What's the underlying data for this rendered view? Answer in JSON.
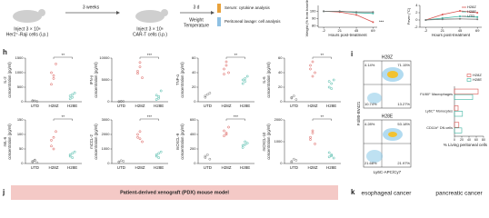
{
  "schematic": {
    "step1": "Inject 3 × 10⁶",
    "step1_cells": "Her2⁺-Raji cells (i.p.)",
    "interval1": "3 weeks",
    "step2": "Inject 3 × 10⁶",
    "step2_cells": "CAR-T cells (i.p.)",
    "interval2": "3 d",
    "measure1": "Weight",
    "measure2": "Temperature",
    "serum": "Serum: cytokine analysis",
    "lavage": "Peritoneal lavage: cell analysis"
  },
  "panels": {
    "h": "h",
    "i": "i",
    "j": "j",
    "k": "k"
  },
  "flow": {
    "y_label": "F4/80-BV421",
    "x_label": "Ly6C-APC/Cy7",
    "plots": [
      {
        "title": "H28Z",
        "quadrants": [
          "4.14%",
          "71.15%",
          "10.74%",
          "13.27%"
        ]
      },
      {
        "title": "H28E",
        "quadrants": [
          "4.28%",
          "53.18%",
          "21.68%",
          "21.97%"
        ]
      }
    ]
  },
  "pdx": {
    "title": "Patient-derived xenograft (PDX) mouse model"
  },
  "cancers": [
    "esophageal cancer",
    "pancreatic cancer"
  ],
  "chart_data": [
    {
      "type": "line",
      "y_label": "Weight (% from baseline)",
      "x_label": "Hours post-treatment",
      "x": [
        -2,
        21,
        45,
        69
      ],
      "xlim": [
        -10,
        75
      ],
      "xticks": [
        -2,
        21,
        45,
        69
      ],
      "ylim": [
        78,
        108
      ],
      "yticks": [
        80,
        90,
        100
      ],
      "annotation": "***",
      "series": [
        {
          "name": "H28Z",
          "color": "#d9534f",
          "values": [
            100,
            99,
            95,
            85
          ]
        },
        {
          "name": "H28E",
          "color": "#3bb3a0",
          "values": [
            100,
            100,
            98,
            97
          ]
        },
        {
          "name": "UTD",
          "color": "#777777",
          "values": [
            100,
            100,
            99,
            99
          ]
        }
      ]
    },
    {
      "type": "line",
      "y_label": "Fever (°C)",
      "x_label": "Hours post-treatment",
      "x": [
        -2,
        21,
        45,
        69
      ],
      "xlim": [
        -10,
        75
      ],
      "xticks": [
        -2,
        21,
        45,
        69
      ],
      "ylim": [
        -2,
        4
      ],
      "yticks": [
        -2,
        0,
        2,
        4
      ],
      "legend": "upper right",
      "series": [
        {
          "name": "H28Z",
          "color": "#d9534f",
          "values": [
            0,
            1.5,
            2.5,
            2
          ]
        },
        {
          "name": "H28E",
          "color": "#3bb3a0",
          "values": [
            0,
            0.5,
            1,
            0.8
          ]
        },
        {
          "name": "UTD",
          "color": "#777777",
          "values": [
            0,
            0.2,
            0.3,
            0.2
          ]
        }
      ]
    },
    {
      "type": "dot",
      "y_label": [
        "IL-2",
        "concentration (pg/ml)"
      ],
      "ylim": [
        0,
        1500
      ],
      "yticks": [
        0,
        500,
        1000,
        1500
      ],
      "annotation": "**",
      "series": [
        {
          "name": "UTD",
          "color": "#777777",
          "values": [
            20,
            30,
            10,
            40,
            25
          ]
        },
        {
          "name": "H28Z",
          "color": "#d9534f",
          "values": [
            1000,
            800,
            1300,
            600,
            900
          ]
        },
        {
          "name": "H28E",
          "color": "#3bb3a0",
          "values": [
            200,
            150,
            300,
            100,
            250
          ]
        }
      ]
    },
    {
      "type": "dot",
      "y_label": [
        "IFN-γ",
        "concentration (pg/ml)"
      ],
      "ylim": [
        0,
        10000
      ],
      "yticks": [
        0,
        5000,
        10000
      ],
      "annotation": "***",
      "series": [
        {
          "name": "UTD",
          "color": "#777777",
          "values": [
            50,
            100,
            80,
            20,
            60
          ]
        },
        {
          "name": "H28Z",
          "color": "#d9534f",
          "values": [
            6500,
            8000,
            5500,
            7000,
            9000
          ]
        },
        {
          "name": "H28E",
          "color": "#3bb3a0",
          "values": [
            1500,
            800,
            2500,
            500,
            1200
          ]
        }
      ]
    },
    {
      "type": "dot",
      "y_label": [
        "TNF-α",
        "concentration (pg/ml)"
      ],
      "ylim": [
        0,
        60
      ],
      "yticks": [
        0,
        20,
        40,
        60
      ],
      "annotation": "**",
      "series": [
        {
          "name": "UTD",
          "color": "#777777",
          "values": [
            8,
            10,
            12,
            6
          ]
        },
        {
          "name": "H28Z",
          "color": "#d9534f",
          "values": [
            45,
            50,
            40,
            38,
            55
          ]
        },
        {
          "name": "H28E",
          "color": "#3bb3a0",
          "values": [
            30,
            28,
            35,
            25,
            32
          ]
        }
      ]
    },
    {
      "type": "dot",
      "y_label": [
        "IL-6",
        "concentration (pg/ml)"
      ],
      "ylim": [
        0,
        60
      ],
      "yticks": [
        0,
        20,
        40,
        60
      ],
      "annotation": "**",
      "series": [
        {
          "name": "UTD",
          "color": "#777777",
          "values": [
            5,
            8,
            3,
            6
          ]
        },
        {
          "name": "H28Z",
          "color": "#d9534f",
          "values": [
            45,
            55,
            40,
            50,
            35
          ]
        },
        {
          "name": "H28E",
          "color": "#3bb3a0",
          "values": [
            20,
            25,
            30,
            28,
            18
          ]
        }
      ]
    },
    {
      "type": "dot",
      "y_label": [
        "mIL-6",
        "concentration (pg/ml)"
      ],
      "ylim": [
        0,
        150
      ],
      "yticks": [
        0,
        50,
        100,
        150
      ],
      "annotation": "**",
      "series": [
        {
          "name": "UTD",
          "color": "#777777",
          "values": [
            5,
            10,
            3,
            8,
            12
          ]
        },
        {
          "name": "H28Z",
          "color": "#d9534f",
          "values": [
            60,
            90,
            110,
            80,
            50
          ]
        },
        {
          "name": "H28E",
          "color": "#3bb3a0",
          "values": [
            30,
            20,
            40,
            25,
            35
          ]
        }
      ]
    },
    {
      "type": "dot",
      "y_label": [
        "mCCL-2",
        "concentration (pg/ml)"
      ],
      "ylim": [
        0,
        3000
      ],
      "yticks": [
        0,
        1000,
        2000,
        3000
      ],
      "annotation": "***",
      "series": [
        {
          "name": "UTD",
          "color": "#777777",
          "values": [
            100,
            200,
            150,
            120
          ]
        },
        {
          "name": "H28Z",
          "color": "#d9534f",
          "values": [
            1800,
            2200,
            1500,
            2000,
            1700
          ]
        },
        {
          "name": "H28E",
          "color": "#3bb3a0",
          "values": [
            600,
            400,
            800,
            500,
            700
          ]
        }
      ]
    },
    {
      "type": "dot",
      "y_label": [
        "mCXCL-9",
        "concentration (pg/ml)"
      ],
      "ylim": [
        0,
        600
      ],
      "yticks": [
        0,
        200,
        400,
        600
      ],
      "annotation": "***",
      "series": [
        {
          "name": "UTD",
          "color": "#777777",
          "values": [
            80,
            120,
            60,
            100
          ]
        },
        {
          "name": "H28Z",
          "color": "#d9534f",
          "values": [
            450,
            400,
            500,
            380,
            420
          ]
        },
        {
          "name": "H28E",
          "color": "#3bb3a0",
          "values": [
            250,
            300,
            280,
            220,
            260
          ]
        }
      ]
    },
    {
      "type": "dot",
      "y_label": [
        "mCXCL-10",
        "concentration (pg/ml)"
      ],
      "ylim": [
        0,
        2000
      ],
      "yticks": [
        0,
        1000,
        2000
      ],
      "annotation": "**",
      "series": [
        {
          "name": "UTD",
          "color": "#777777",
          "values": [
            100,
            200,
            150,
            50
          ]
        },
        {
          "name": "H28Z",
          "color": "#d9534f",
          "values": [
            1200,
            1500,
            900,
            1100,
            1400
          ]
        },
        {
          "name": "H28E",
          "color": "#3bb3a0",
          "values": [
            300,
            400,
            250,
            500,
            350
          ]
        }
      ]
    },
    {
      "type": "hbar",
      "x_label": "% Living peritoneal cells",
      "categories": [
        "F4/80⁺ Macrophages",
        "Ly6C⁺ Monocytes",
        "CD11b⁺ DN cells"
      ],
      "xlim": [
        0,
        80
      ],
      "xticks": [
        0,
        20,
        40,
        60,
        80
      ],
      "legend": "upper right",
      "series": [
        {
          "name": "H28Z",
          "color": "#d9534f",
          "values": [
            65,
            10,
            12
          ]
        },
        {
          "name": "H28E",
          "color": "#3bb3a0",
          "values": [
            50,
            22,
            20
          ]
        }
      ]
    }
  ]
}
